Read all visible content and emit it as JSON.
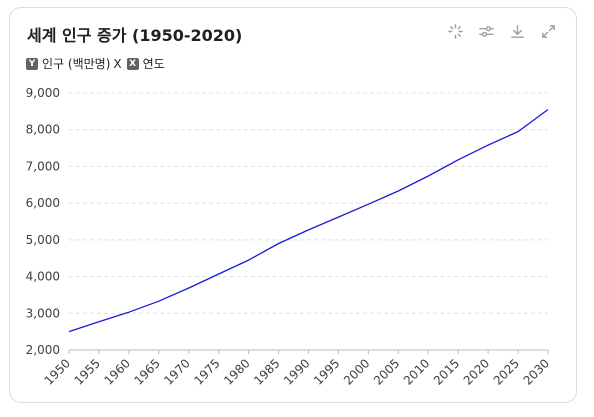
{
  "chart_data": {
    "type": "line",
    "title": "세계 인구 증가 (1950-2020)",
    "legend": {
      "y_key": "Y",
      "y_label": "인구 (백만명)",
      "x_key": "X",
      "x_label": "연도",
      "separator": "X"
    },
    "x": [
      1950,
      1955,
      1960,
      1965,
      1970,
      1975,
      1980,
      1985,
      1990,
      1995,
      2000,
      2005,
      2010,
      2015,
      2020,
      2025,
      2030
    ],
    "series": [
      {
        "name": "인구 (백만명)",
        "values": [
          2500,
          2770,
          3030,
          3330,
          3690,
          4070,
          4450,
          4900,
          5270,
          5620,
          5970,
          6330,
          6740,
          7180,
          7580,
          7950,
          8550
        ]
      }
    ],
    "x_tick_labels": [
      "1950",
      "1955",
      "1960",
      "1965",
      "1970",
      "1975",
      "1980",
      "1985",
      "1990",
      "1995",
      "2000",
      "2005",
      "2010",
      "2015",
      "2020",
      "2025",
      "2030"
    ],
    "y_ticks": [
      2000,
      3000,
      4000,
      5000,
      6000,
      7000,
      8000,
      9000
    ],
    "y_tick_labels": [
      "2,000",
      "3,000",
      "4,000",
      "5,000",
      "6,000",
      "7,000",
      "8,000",
      "9,000"
    ],
    "xlim": [
      1950,
      2030
    ],
    "ylim": [
      2000,
      9000
    ],
    "grid": true,
    "line_color": "#1a1adb"
  },
  "toolbar": {
    "icons": [
      "sparkle-icon",
      "settings-sliders-icon",
      "download-icon",
      "expand-icon"
    ]
  }
}
